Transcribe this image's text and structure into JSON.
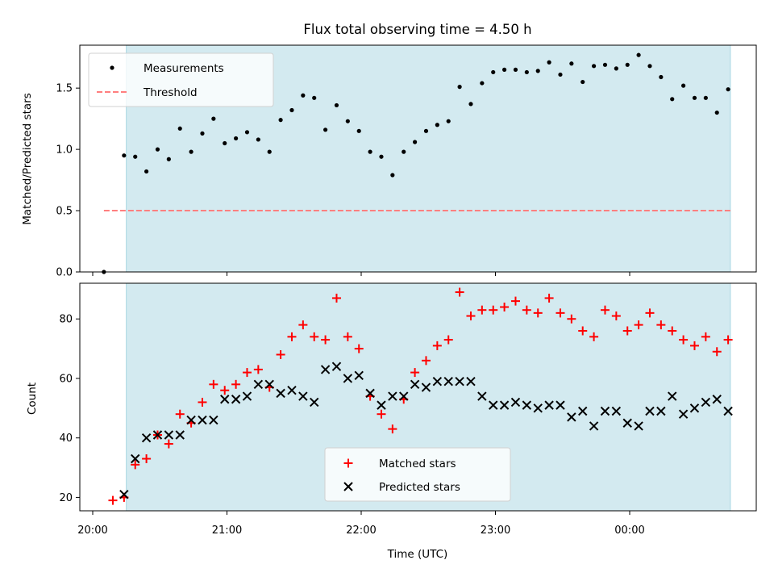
{
  "chart_data": [
    {
      "type": "scatter",
      "title": "Flux total observing time = 4.50 h",
      "ylabel": "Matched/Predicted stars",
      "xlabel": "",
      "xlim": [
        "20:00",
        "00:45"
      ],
      "ylim": [
        0,
        1.85
      ],
      "yticks": [
        0.0,
        0.5,
        1.0,
        1.5
      ],
      "ytick_labels": [
        "0.0",
        "0.5",
        "1.0",
        "1.5"
      ],
      "legend_position": "upper-left",
      "shaded_interval": [
        "20:15",
        "00:45"
      ],
      "threshold": {
        "name": "Threshold",
        "value": 0.5,
        "from": "20:05",
        "to": "00:45",
        "color": "#ff7f7f"
      },
      "series": [
        {
          "name": "Measurements",
          "color": "#000000",
          "points": [
            [
              "20:05",
              0.0
            ],
            [
              "20:14",
              0.95
            ],
            [
              "20:19",
              0.94
            ],
            [
              "20:24",
              0.82
            ],
            [
              "20:29",
              1.0
            ],
            [
              "20:34",
              0.92
            ],
            [
              "20:39",
              1.17
            ],
            [
              "20:44",
              0.98
            ],
            [
              "20:49",
              1.13
            ],
            [
              "20:54",
              1.25
            ],
            [
              "20:59",
              1.05
            ],
            [
              "21:04",
              1.09
            ],
            [
              "21:09",
              1.14
            ],
            [
              "21:14",
              1.08
            ],
            [
              "21:19",
              0.98
            ],
            [
              "21:24",
              1.24
            ],
            [
              "21:29",
              1.32
            ],
            [
              "21:34",
              1.44
            ],
            [
              "21:39",
              1.42
            ],
            [
              "21:44",
              1.16
            ],
            [
              "21:49",
              1.36
            ],
            [
              "21:54",
              1.23
            ],
            [
              "21:59",
              1.15
            ],
            [
              "22:04",
              0.98
            ],
            [
              "22:09",
              0.94
            ],
            [
              "22:14",
              0.79
            ],
            [
              "22:19",
              0.98
            ],
            [
              "22:24",
              1.06
            ],
            [
              "22:29",
              1.15
            ],
            [
              "22:34",
              1.2
            ],
            [
              "22:39",
              1.23
            ],
            [
              "22:44",
              1.51
            ],
            [
              "22:49",
              1.37
            ],
            [
              "22:54",
              1.54
            ],
            [
              "22:59",
              1.63
            ],
            [
              "23:04",
              1.65
            ],
            [
              "23:09",
              1.65
            ],
            [
              "23:14",
              1.63
            ],
            [
              "23:19",
              1.64
            ],
            [
              "23:24",
              1.71
            ],
            [
              "23:29",
              1.61
            ],
            [
              "23:34",
              1.7
            ],
            [
              "23:39",
              1.55
            ],
            [
              "23:44",
              1.68
            ],
            [
              "23:49",
              1.69
            ],
            [
              "23:54",
              1.66
            ],
            [
              "23:59",
              1.69
            ],
            [
              "00:04",
              1.77
            ],
            [
              "00:09",
              1.68
            ],
            [
              "00:14",
              1.59
            ],
            [
              "00:19",
              1.41
            ],
            [
              "00:24",
              1.52
            ],
            [
              "00:29",
              1.42
            ],
            [
              "00:34",
              1.42
            ],
            [
              "00:39",
              1.3
            ],
            [
              "00:44",
              1.49
            ]
          ]
        }
      ]
    },
    {
      "type": "scatter",
      "title": "",
      "xlabel": "Time (UTC)",
      "ylabel": "Count",
      "xlim": [
        "20:00",
        "00:45"
      ],
      "xticks": [
        "20:00",
        "21:00",
        "22:00",
        "23:00",
        "00:00"
      ],
      "ylim": [
        15.5,
        92
      ],
      "yticks": [
        20,
        40,
        60,
        80
      ],
      "legend_position": "lower-center",
      "shaded_interval": [
        "20:15",
        "00:45"
      ],
      "series": [
        {
          "name": "Matched stars",
          "color": "#ff0000",
          "marker": "plus",
          "points": [
            [
              "20:09",
              19
            ],
            [
              "20:14",
              20
            ],
            [
              "20:19",
              31
            ],
            [
              "20:24",
              33
            ],
            [
              "20:29",
              41
            ],
            [
              "20:34",
              38
            ],
            [
              "20:39",
              48
            ],
            [
              "20:44",
              45
            ],
            [
              "20:49",
              52
            ],
            [
              "20:54",
              58
            ],
            [
              "20:59",
              56
            ],
            [
              "21:04",
              58
            ],
            [
              "21:09",
              62
            ],
            [
              "21:14",
              63
            ],
            [
              "21:19",
              57
            ],
            [
              "21:24",
              68
            ],
            [
              "21:29",
              74
            ],
            [
              "21:34",
              78
            ],
            [
              "21:39",
              74
            ],
            [
              "21:44",
              73
            ],
            [
              "21:49",
              87
            ],
            [
              "21:54",
              74
            ],
            [
              "21:59",
              70
            ],
            [
              "22:04",
              54
            ],
            [
              "22:09",
              48
            ],
            [
              "22:14",
              43
            ],
            [
              "22:19",
              53
            ],
            [
              "22:24",
              62
            ],
            [
              "22:29",
              66
            ],
            [
              "22:34",
              71
            ],
            [
              "22:39",
              73
            ],
            [
              "22:44",
              89
            ],
            [
              "22:49",
              81
            ],
            [
              "22:54",
              83
            ],
            [
              "22:59",
              83
            ],
            [
              "23:04",
              84
            ],
            [
              "23:09",
              86
            ],
            [
              "23:14",
              83
            ],
            [
              "23:19",
              82
            ],
            [
              "23:24",
              87
            ],
            [
              "23:29",
              82
            ],
            [
              "23:34",
              80
            ],
            [
              "23:39",
              76
            ],
            [
              "23:44",
              74
            ],
            [
              "23:49",
              83
            ],
            [
              "23:54",
              81
            ],
            [
              "23:59",
              76
            ],
            [
              "00:04",
              78
            ],
            [
              "00:09",
              82
            ],
            [
              "00:14",
              78
            ],
            [
              "00:19",
              76
            ],
            [
              "00:24",
              73
            ],
            [
              "00:29",
              71
            ],
            [
              "00:34",
              74
            ],
            [
              "00:39",
              69
            ],
            [
              "00:44",
              73
            ]
          ]
        },
        {
          "name": "Predicted stars",
          "color": "#000000",
          "marker": "x",
          "points": [
            [
              "20:14",
              21
            ],
            [
              "20:19",
              33
            ],
            [
              "20:24",
              40
            ],
            [
              "20:29",
              41
            ],
            [
              "20:34",
              41
            ],
            [
              "20:39",
              41
            ],
            [
              "20:44",
              46
            ],
            [
              "20:49",
              46
            ],
            [
              "20:54",
              46
            ],
            [
              "20:59",
              53
            ],
            [
              "21:04",
              53
            ],
            [
              "21:09",
              54
            ],
            [
              "21:14",
              58
            ],
            [
              "21:19",
              58
            ],
            [
              "21:24",
              55
            ],
            [
              "21:29",
              56
            ],
            [
              "21:34",
              54
            ],
            [
              "21:39",
              52
            ],
            [
              "21:44",
              63
            ],
            [
              "21:49",
              64
            ],
            [
              "21:54",
              60
            ],
            [
              "21:59",
              61
            ],
            [
              "22:04",
              55
            ],
            [
              "22:09",
              51
            ],
            [
              "22:14",
              54
            ],
            [
              "22:19",
              54
            ],
            [
              "22:24",
              58
            ],
            [
              "22:29",
              57
            ],
            [
              "22:34",
              59
            ],
            [
              "22:39",
              59
            ],
            [
              "22:44",
              59
            ],
            [
              "22:49",
              59
            ],
            [
              "22:54",
              54
            ],
            [
              "22:59",
              51
            ],
            [
              "23:04",
              51
            ],
            [
              "23:09",
              52
            ],
            [
              "23:14",
              51
            ],
            [
              "23:19",
              50
            ],
            [
              "23:24",
              51
            ],
            [
              "23:29",
              51
            ],
            [
              "23:34",
              47
            ],
            [
              "23:39",
              49
            ],
            [
              "23:44",
              44
            ],
            [
              "23:49",
              49
            ],
            [
              "23:54",
              49
            ],
            [
              "23:59",
              45
            ],
            [
              "00:04",
              44
            ],
            [
              "00:09",
              49
            ],
            [
              "00:14",
              49
            ],
            [
              "00:19",
              54
            ],
            [
              "00:24",
              48
            ],
            [
              "00:29",
              50
            ],
            [
              "00:34",
              52
            ],
            [
              "00:39",
              53
            ],
            [
              "00:44",
              49
            ]
          ]
        }
      ]
    }
  ],
  "colors": {
    "shade": "#d3eaf0",
    "shade_edge": "#a9d7e2",
    "threshold": "#ff7f7f"
  }
}
